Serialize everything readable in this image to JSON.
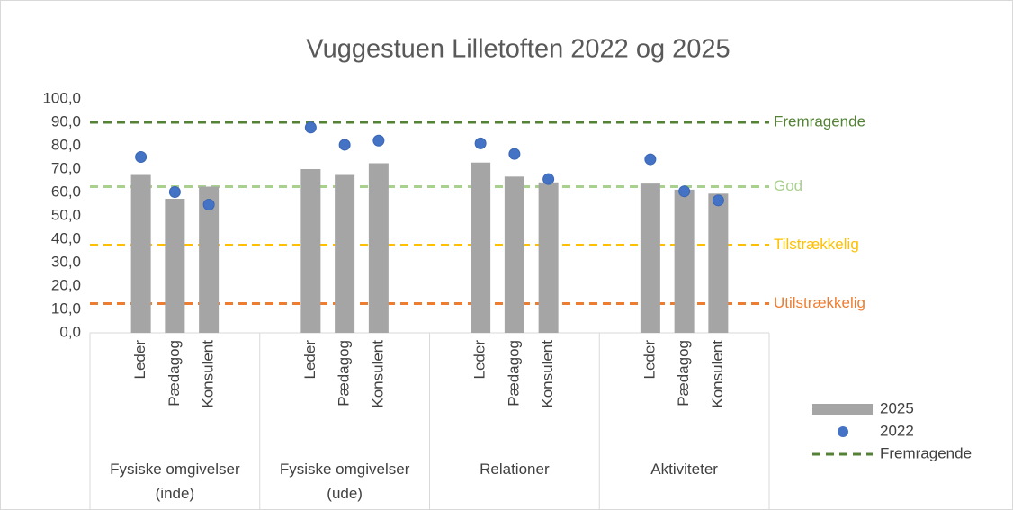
{
  "chart_data": {
    "type": "bar",
    "title": "Vuggestuen Lilletoften 2022 og 2025",
    "groups": [
      {
        "name": "Fysiske omgivelser (inde)",
        "categories": [
          "Leder",
          "Pædagog",
          "Konsulent"
        ]
      },
      {
        "name": "Fysiske omgivelser (ude)",
        "categories": [
          "Leder",
          "Pædagog",
          "Konsulent"
        ]
      },
      {
        "name": "Relationer",
        "categories": [
          "Leder",
          "Pædagog",
          "Konsulent"
        ]
      },
      {
        "name": "Aktiviteter",
        "categories": [
          "Leder",
          "Pædagog",
          "Konsulent"
        ]
      }
    ],
    "series": [
      {
        "name": "2025",
        "type": "bar",
        "color": "#a5a5a5",
        "values": [
          67.5,
          57.3,
          62.5,
          70.0,
          67.5,
          72.5,
          72.8,
          66.8,
          64.3,
          63.8,
          61.2,
          59.5
        ]
      },
      {
        "name": "2022",
        "type": "scatter",
        "color": "#4472c4",
        "values": [
          75.2,
          60.2,
          54.8,
          87.8,
          80.4,
          82.2,
          81.0,
          76.5,
          65.7,
          74.2,
          60.5,
          56.6
        ]
      }
    ],
    "reference_lines": [
      {
        "name": "Fremragende",
        "value": 90,
        "color": "#548235",
        "legend": true
      },
      {
        "name": "God",
        "value": 62.5,
        "color": "#a9d18e",
        "legend": false
      },
      {
        "name": "Tilstrækkelig",
        "value": 37.5,
        "color": "#ffc000",
        "legend": false
      },
      {
        "name": "Utilstrækkelig",
        "value": 12.5,
        "color": "#ed7d31",
        "legend": false
      }
    ],
    "ylim": [
      0,
      100
    ],
    "yticks": [
      {
        "value": 0,
        "label": "0,0"
      },
      {
        "value": 10,
        "label": "10,0"
      },
      {
        "value": 20,
        "label": "20,0"
      },
      {
        "value": 30,
        "label": "30,0"
      },
      {
        "value": 40,
        "label": "40,0"
      },
      {
        "value": 50,
        "label": "50,0"
      },
      {
        "value": 60,
        "label": "60,0"
      },
      {
        "value": 70,
        "label": "70,0"
      },
      {
        "value": 80,
        "label": "80,0"
      },
      {
        "value": 90,
        "label": "90,0"
      },
      {
        "value": 100,
        "label": "100,0"
      }
    ],
    "grid": false,
    "legend": "right"
  }
}
